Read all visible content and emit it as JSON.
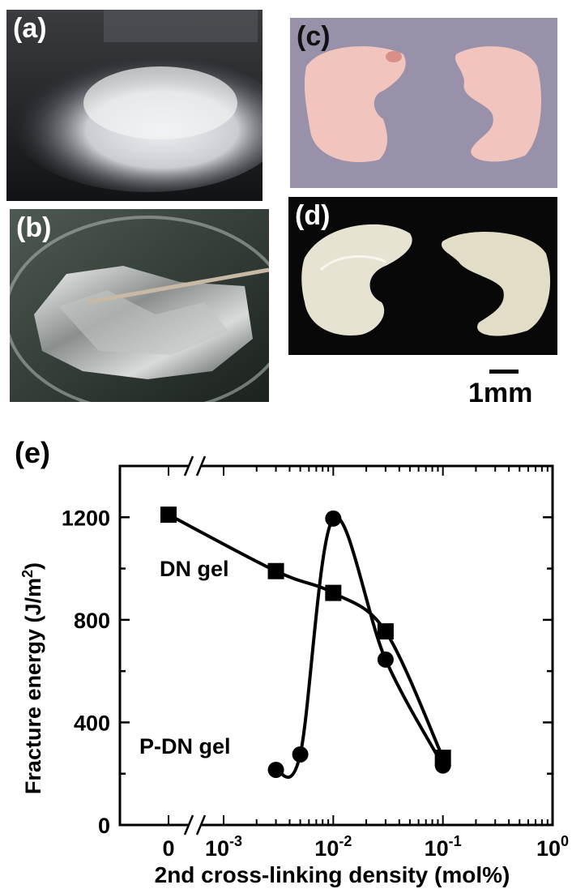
{
  "panels": {
    "a": {
      "label": "(a)"
    },
    "b": {
      "label": "(b)"
    },
    "c": {
      "label": "(c)"
    },
    "d": {
      "label": "(d)"
    },
    "e": {
      "label": "(e)"
    }
  },
  "scale_bar": {
    "label": "1mm"
  },
  "chart_data": {
    "type": "line",
    "title": "",
    "xlabel": "2nd cross-linking density (mol%)",
    "ylabel": "Fracture energy (J/m²)",
    "x_scale": "log (with a broken-axis point at 0)",
    "x_tick_labels": [
      "0",
      "10-3",
      "10-2",
      "10-1",
      "100"
    ],
    "xlim": [
      0.0003,
      1
    ],
    "ylim": [
      0,
      1400
    ],
    "y_ticks": [
      0,
      400,
      800,
      1200
    ],
    "series": [
      {
        "name": "DN gel",
        "marker": "square",
        "x": [
          0,
          0.003,
          0.01,
          0.03,
          0.1
        ],
        "y": [
          1210,
          990,
          905,
          755,
          262
        ]
      },
      {
        "name": "P-DN gel",
        "marker": "circle",
        "x": [
          0.003,
          0.005,
          0.01,
          0.03,
          0.1
        ],
        "y": [
          215,
          275,
          1195,
          645,
          232
        ]
      }
    ],
    "grid": false,
    "legend": "inline labels"
  }
}
